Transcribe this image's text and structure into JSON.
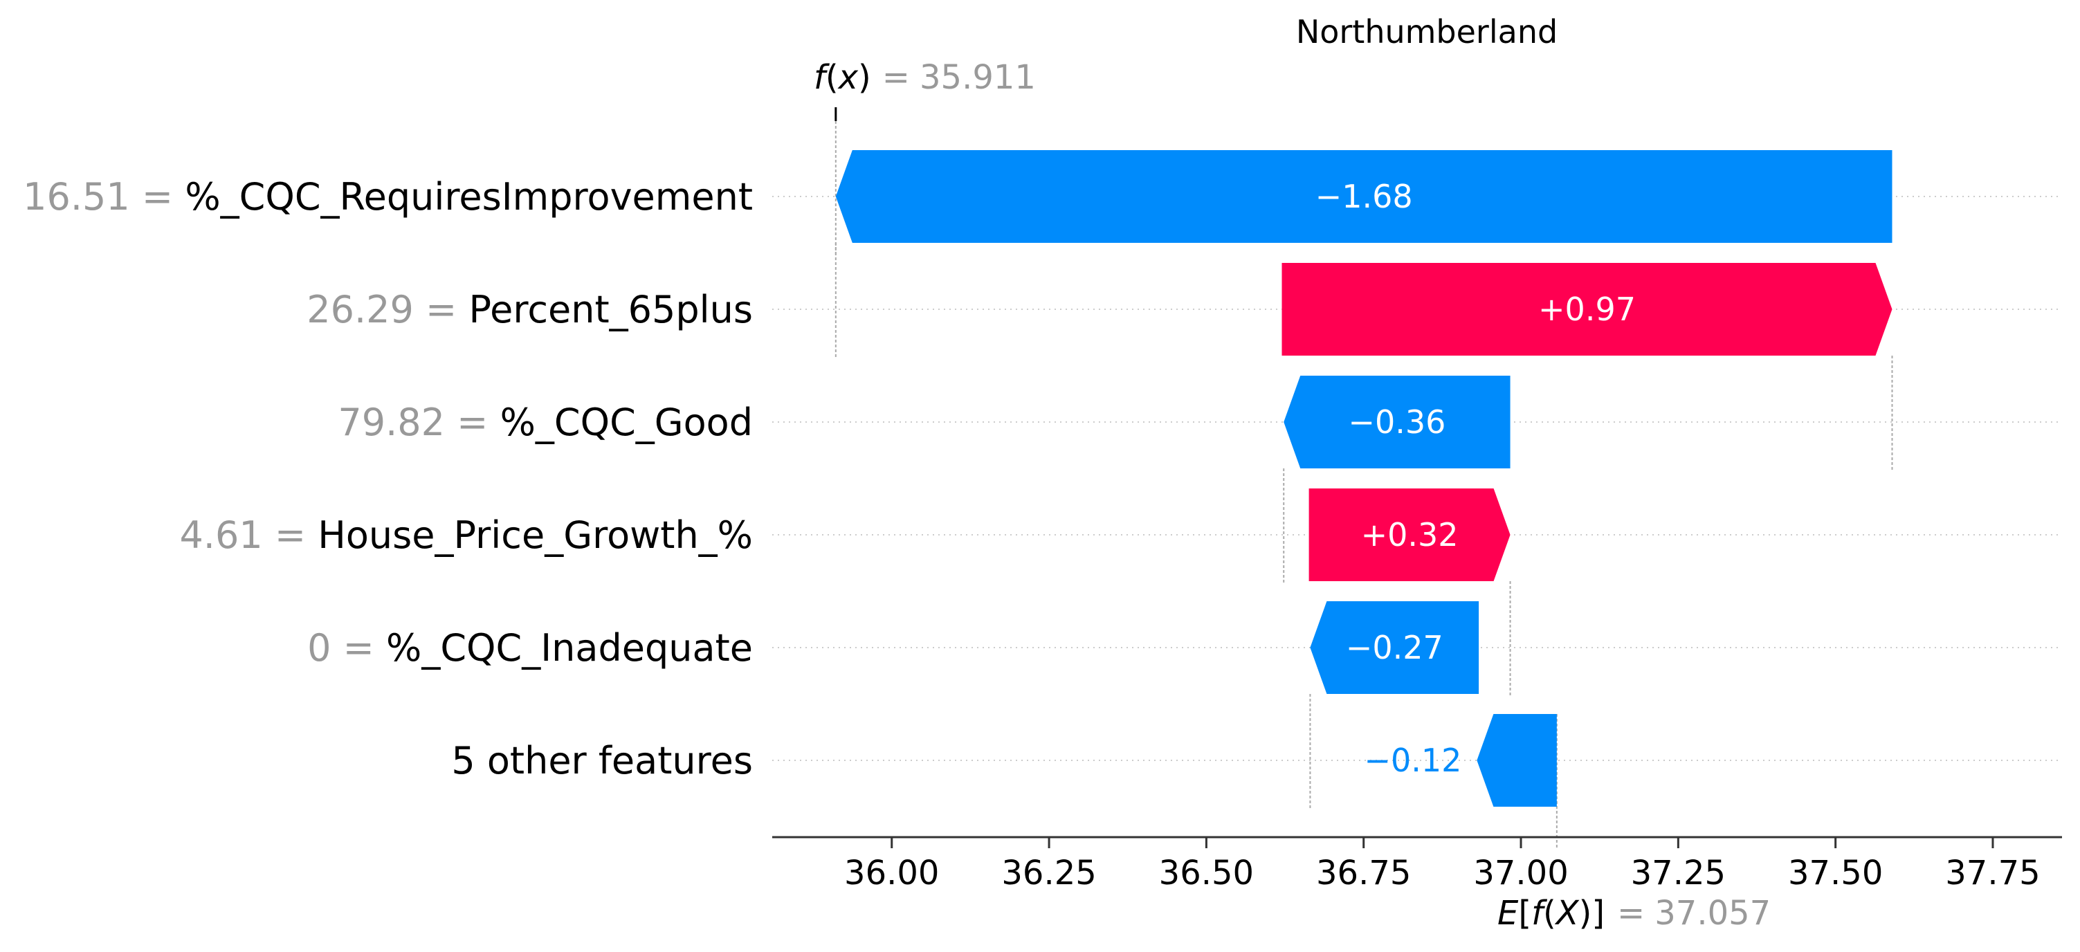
{
  "chart_data": {
    "type": "waterfall",
    "title": "Northumberland",
    "f_x": {
      "label": "f(x)",
      "eq": "=",
      "value_text": "35.911",
      "value": 35.911
    },
    "expected": {
      "label": "E[f(X)]",
      "eq": "=",
      "value_text": "37.057",
      "value": 37.057
    },
    "xlim": [
      35.81,
      37.86
    ],
    "x_ticks": [
      36.0,
      36.25,
      36.5,
      36.75,
      37.0,
      37.25,
      37.5,
      37.75
    ],
    "x_tick_labels": [
      "36.00",
      "36.25",
      "36.50",
      "36.75",
      "37.00",
      "37.25",
      "37.50",
      "37.75"
    ],
    "features": [
      {
        "value_text": "16.51",
        "eq": "=",
        "name": "%_CQC_RequiresImprovement",
        "shap": -1.68,
        "label": "−1.68",
        "start": 37.59,
        "end": 35.911
      },
      {
        "value_text": "26.29",
        "eq": "=",
        "name": "Percent_65plus",
        "shap": 0.97,
        "label": "+0.97",
        "start": 36.62,
        "end": 37.59
      },
      {
        "value_text": "79.82",
        "eq": "=",
        "name": "%_CQC_Good",
        "shap": -0.36,
        "label": "−0.36",
        "start": 36.983,
        "end": 36.623
      },
      {
        "value_text": "4.61",
        "eq": "=",
        "name": "House_Price_Growth_%",
        "shap": 0.32,
        "label": "+0.32",
        "start": 36.663,
        "end": 36.983
      },
      {
        "value_text": "0",
        "eq": "=",
        "name": "%_CQC_Inadequate",
        "shap": -0.27,
        "label": "−0.27",
        "start": 36.933,
        "end": 36.665
      },
      {
        "value_text": "",
        "eq": "",
        "name": "5 other features",
        "shap": -0.12,
        "label": "−0.12",
        "start": 37.057,
        "end": 36.93
      }
    ],
    "colors": {
      "negative": "#008bfb",
      "positive": "#ff0051",
      "feature_value": "#999999",
      "feature_name": "#000000",
      "axis": "#333333",
      "grid": "#cccccc"
    }
  }
}
